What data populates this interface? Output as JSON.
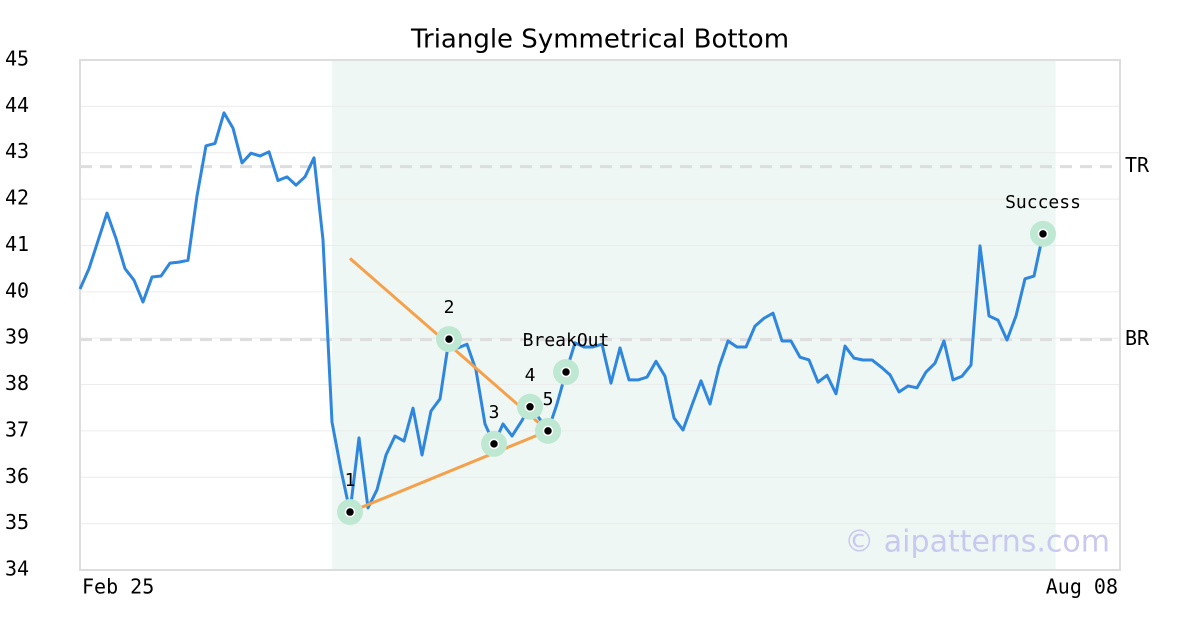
{
  "chart_data": {
    "type": "line",
    "title": "Triangle Symmetrical Bottom",
    "categories": [
      "Feb 25",
      null,
      null,
      null,
      null,
      null,
      null,
      null,
      null,
      null,
      null,
      null,
      null,
      null,
      null,
      null,
      null,
      null,
      null,
      null,
      null,
      null,
      null,
      null,
      null,
      null,
      null,
      null,
      null,
      null,
      null,
      null,
      null,
      null,
      null,
      null,
      null,
      null,
      null,
      null,
      null,
      null,
      null,
      null,
      null,
      null,
      null,
      null,
      null,
      null,
      null,
      null,
      null,
      null,
      null,
      null,
      null,
      null,
      null,
      null,
      null,
      null,
      null,
      null,
      null,
      null,
      null,
      null,
      null,
      null,
      null,
      null,
      null,
      null,
      null,
      null,
      null,
      null,
      null,
      null,
      null,
      null,
      null,
      null,
      null,
      null,
      null,
      null,
      null,
      null,
      null,
      null,
      null,
      null,
      null,
      null,
      null,
      null,
      null,
      null,
      null,
      null,
      null,
      null,
      null,
      null,
      null,
      null,
      "Aug 08"
    ],
    "series": [
      {
        "color": "#2e86de",
        "values": [
          40.06,
          40.5,
          41.1,
          41.7,
          41.15,
          40.5,
          40.25,
          39.78,
          40.32,
          40.34,
          40.62,
          40.64,
          40.68,
          42.07,
          43.15,
          43.2,
          43.86,
          43.53,
          42.78,
          42.99,
          42.93,
          43.02,
          42.4,
          42.48,
          42.3,
          42.48,
          42.89,
          41.12,
          37.19,
          36.16,
          35.25,
          36.85,
          35.34,
          35.73,
          36.48,
          36.89,
          36.78,
          37.49,
          36.48,
          37.43,
          37.69,
          38.98,
          38.79,
          38.87,
          38.31,
          37.15,
          36.72,
          37.15,
          36.89,
          37.19,
          37.52,
          37.28,
          37.0,
          37.58,
          38.27,
          38.9,
          38.81,
          38.81,
          38.87,
          38.03,
          38.79,
          38.1,
          38.1,
          38.16,
          38.5,
          38.18,
          37.28,
          37.02,
          37.56,
          38.08,
          37.58,
          38.38,
          38.94,
          38.81,
          38.81,
          39.26,
          39.43,
          39.54,
          38.94,
          38.94,
          38.59,
          38.53,
          38.05,
          38.2,
          37.8,
          38.83,
          38.57,
          38.53,
          38.53,
          38.38,
          38.21,
          37.84,
          37.97,
          37.93,
          38.27,
          38.46,
          38.94,
          38.1,
          38.18,
          38.42,
          40.99,
          39.48,
          39.39,
          38.96,
          39.48,
          40.28,
          40.34,
          41.25,
          41.25
        ]
      }
    ],
    "ylim": [
      34,
      45
    ],
    "yticks": [
      34,
      35,
      36,
      37,
      38,
      39,
      40,
      41,
      42,
      43,
      44,
      45
    ],
    "grid": true,
    "pattern_zone": {
      "x": [
        28,
        108.4
      ],
      "color": "#eef7f3"
    },
    "reference_lines": [
      {
        "label": "TR",
        "value": 42.7
      },
      {
        "label": "BR",
        "value": 38.97
      }
    ],
    "trendlines": {
      "color": "#f5a04a",
      "lines": [
        {
          "x": [
            30,
            52
          ],
          "values": [
            40.72,
            37.0
          ]
        },
        {
          "x": [
            30,
            52
          ],
          "values": [
            35.25,
            37.0
          ]
        }
      ]
    },
    "markers": [
      {
        "label": "1",
        "x": 30,
        "value": 35.25
      },
      {
        "label": "2",
        "x": 41,
        "value": 38.98
      },
      {
        "label": "3",
        "x": 46,
        "value": 36.72
      },
      {
        "label": "4",
        "x": 50,
        "value": 37.52
      },
      {
        "label": "5",
        "x": 52,
        "value": 37.0
      },
      {
        "label": "BreakOut",
        "x": 54,
        "value": 38.27
      },
      {
        "label": "Success",
        "x": 107,
        "value": 41.25
      }
    ],
    "watermark": "© aipatterns.com"
  }
}
